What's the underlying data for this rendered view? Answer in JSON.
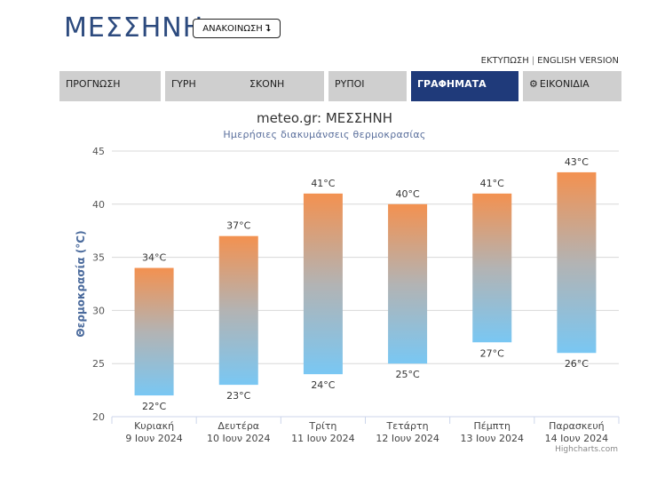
{
  "header": {
    "title": "ΜΕΣΣΗΝΗ",
    "announce_label": "ΑΝΑΚΟΙΝΩΣΗ",
    "announce_icon": "arrow-down-icon",
    "print_label": "ΕΚΤΥΠΩΣΗ",
    "separator": "|",
    "english_label": "ENGLISH VERSION"
  },
  "tabs": [
    {
      "label": "ΠΡΟΓΝΩΣΗ",
      "active": false
    },
    {
      "label": "ΓΥΡΗ",
      "active": false
    },
    {
      "label": "ΣΚΟΝΗ",
      "active": false
    },
    {
      "label": "ΡΥΠΟΙ",
      "active": false
    },
    {
      "label": "ΓΡΑΦΗΜΑΤΑ",
      "active": true
    },
    {
      "label": "ΕΙΚΟΝΙΔΙΑ",
      "active": false,
      "icon": "gear-icon"
    }
  ],
  "colors": {
    "accent": "#1f3a7a",
    "tab_bg": "#cfcfcf",
    "bar_top": "#f39150",
    "bar_bottom": "#79c7f3"
  },
  "chart_data": {
    "type": "columnrange",
    "title": "meteo.gr: ΜΕΣΣΗΝΗ",
    "subtitle": "Ημερήσιες διακυμάνσεις θερμοκρασίας",
    "ylabel": "Θερμοκρασία (°C)",
    "ylim": [
      20,
      45
    ],
    "yticks": [
      20,
      25,
      30,
      35,
      40,
      45
    ],
    "grid": true,
    "categories": [
      {
        "day": "Κυριακή",
        "date": "9 Ιουν 2024"
      },
      {
        "day": "Δευτέρα",
        "date": "10 Ιουν 2024"
      },
      {
        "day": "Τρίτη",
        "date": "11 Ιουν 2024"
      },
      {
        "day": "Τετάρτη",
        "date": "12 Ιουν 2024"
      },
      {
        "day": "Πέμπτη",
        "date": "13 Ιουν 2024"
      },
      {
        "day": "Παρασκευή",
        "date": "14 Ιουν 2024"
      }
    ],
    "low": [
      22,
      23,
      24,
      25,
      27,
      26
    ],
    "high": [
      34,
      37,
      41,
      40,
      41,
      43
    ],
    "unit": "°C"
  },
  "credits": "Highcharts.com"
}
